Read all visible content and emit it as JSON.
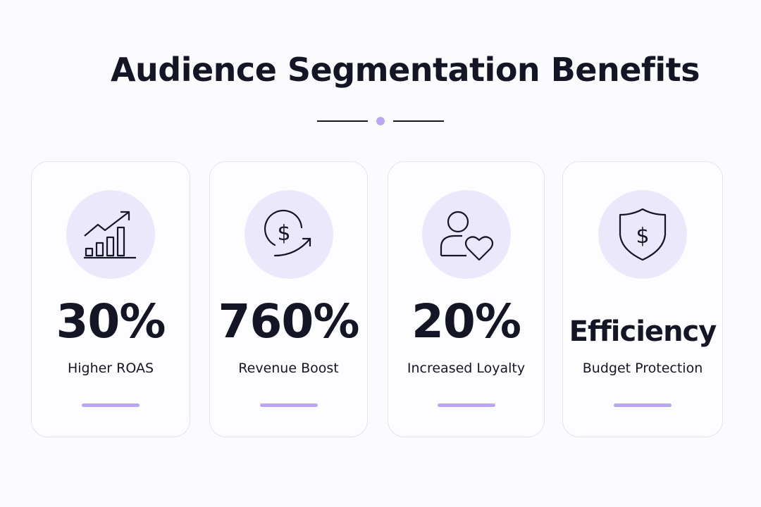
{
  "header": {
    "title": "Audience Segmentation Benefits"
  },
  "cards": [
    {
      "stat": "30%",
      "label": "Higher ROAS"
    },
    {
      "stat": "760%",
      "label": "Revenue Boost"
    },
    {
      "stat": "20%",
      "label": "Increased Loyalty"
    },
    {
      "stat": "Efficiency",
      "label": "Budget Protection"
    }
  ]
}
